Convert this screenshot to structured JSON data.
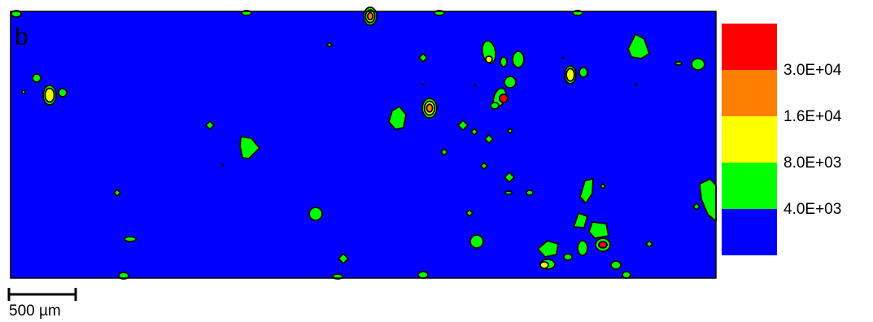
{
  "panel_label": "b",
  "scale_bar": {
    "label": "500 µm"
  },
  "colors": {
    "background_level": "#0000ff",
    "level_1": "#00ff00",
    "level_2": "#ffff00",
    "level_3": "#ff8000",
    "level_4": "#ff0000",
    "contour_line": "#000000"
  },
  "chart_data": {
    "type": "heatmap",
    "title": "",
    "xlabel": "",
    "ylabel": "",
    "colorbar": {
      "colors": [
        "#ff0000",
        "#ff8000",
        "#ffff00",
        "#00ff00",
        "#0000ff"
      ],
      "tick_labels": [
        "3.0E+04",
        "1.6E+04",
        "8.0E+03",
        "4.0E+03"
      ],
      "thresholds": [
        30000,
        16000,
        8000,
        4000
      ]
    }
  }
}
